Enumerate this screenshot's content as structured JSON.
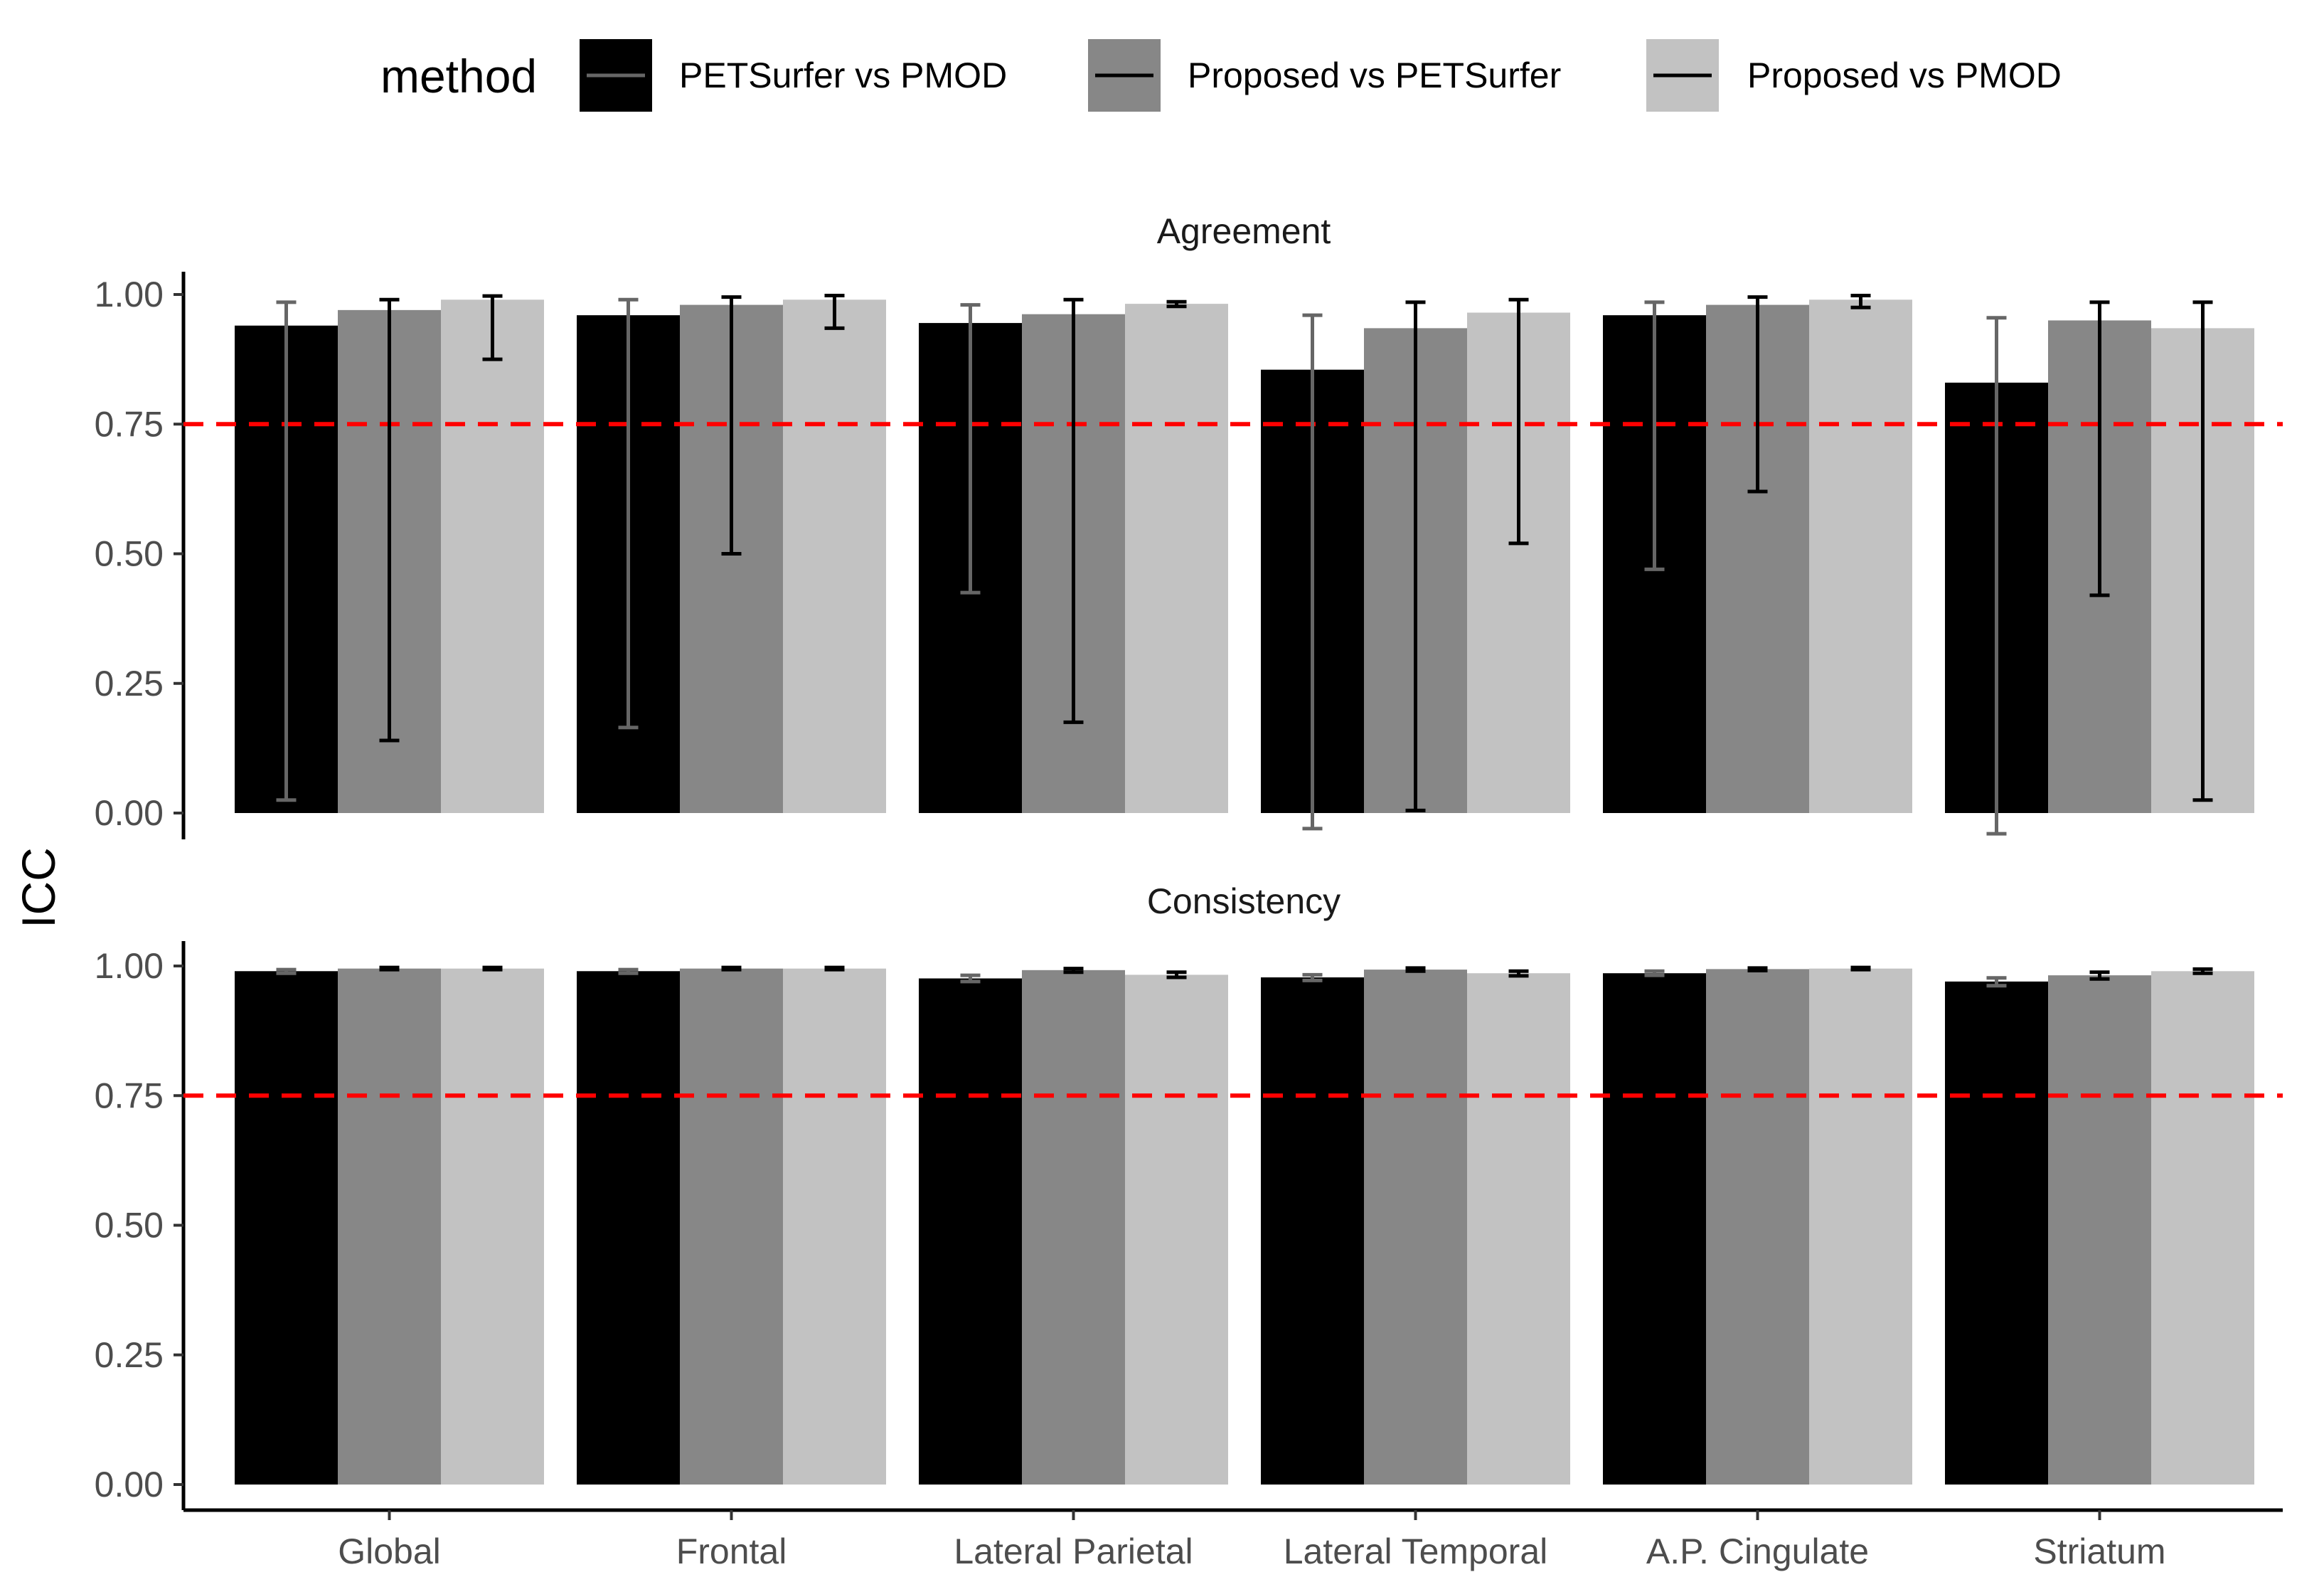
{
  "chart_data": {
    "type": "bar",
    "ylabel": "ICC",
    "xlabel": "",
    "ylim": [
      0,
      1
    ],
    "y_ticks": [
      "0.00",
      "0.25",
      "0.50",
      "0.75",
      "1.00"
    ],
    "y_tick_values": [
      0,
      0.25,
      0.5,
      0.75,
      1.0
    ],
    "reference_line": {
      "value": 0.75,
      "color": "#ff0000",
      "style": "dashed"
    },
    "categories": [
      "Global",
      "Frontal",
      "Lateral Parietal",
      "Lateral Temporal",
      "A.P. Cingulate",
      "Striatum"
    ],
    "legend": {
      "title": "method",
      "position": "top",
      "items": [
        {
          "label": "PETSurfer vs PMOD",
          "fill": "#000000",
          "error_color": "#666666"
        },
        {
          "label": "Proposed vs PETSurfer",
          "fill": "#878787",
          "error_color": "#000000"
        },
        {
          "label": "Proposed vs PMOD",
          "fill": "#c2c2c2",
          "error_color": "#000000"
        }
      ]
    },
    "panels": [
      {
        "title": "Agreement",
        "series": [
          {
            "name": "PETSurfer vs PMOD",
            "values": [
              0.94,
              0.96,
              0.945,
              0.855,
              0.96,
              0.83
            ],
            "lower": [
              0.025,
              0.165,
              0.425,
              -0.03,
              0.47,
              -0.04
            ],
            "upper": [
              0.985,
              0.99,
              0.98,
              0.96,
              0.985,
              0.955
            ]
          },
          {
            "name": "Proposed vs PETSurfer",
            "values": [
              0.97,
              0.98,
              0.962,
              0.935,
              0.98,
              0.95
            ],
            "lower": [
              0.14,
              0.5,
              0.175,
              0.005,
              0.62,
              0.42
            ],
            "upper": [
              0.99,
              0.995,
              0.99,
              0.985,
              0.995,
              0.985
            ]
          },
          {
            "name": "Proposed vs PMOD",
            "values": [
              0.99,
              0.99,
              0.982,
              0.965,
              0.99,
              0.935
            ],
            "lower": [
              0.875,
              0.935,
              0.977,
              0.52,
              0.975,
              0.025
            ],
            "upper": [
              0.997,
              0.998,
              0.986,
              0.99,
              0.998,
              0.985
            ]
          }
        ]
      },
      {
        "title": "Consistency",
        "series": [
          {
            "name": "PETSurfer vs PMOD",
            "values": [
              0.99,
              0.99,
              0.976,
              0.978,
              0.986,
              0.97
            ],
            "lower": [
              0.986,
              0.986,
              0.97,
              0.972,
              0.982,
              0.962
            ],
            "upper": [
              0.993,
              0.993,
              0.982,
              0.983,
              0.99,
              0.977
            ]
          },
          {
            "name": "Proposed vs PETSurfer",
            "values": [
              0.995,
              0.995,
              0.992,
              0.993,
              0.994,
              0.982
            ],
            "lower": [
              0.993,
              0.993,
              0.988,
              0.99,
              0.991,
              0.975
            ],
            "upper": [
              0.997,
              0.997,
              0.995,
              0.996,
              0.996,
              0.988
            ]
          },
          {
            "name": "Proposed vs PMOD",
            "values": [
              0.995,
              0.995,
              0.983,
              0.986,
              0.995,
              0.99
            ],
            "lower": [
              0.993,
              0.993,
              0.978,
              0.981,
              0.993,
              0.986
            ],
            "upper": [
              0.997,
              0.997,
              0.988,
              0.99,
              0.997,
              0.994
            ]
          }
        ]
      }
    ]
  }
}
